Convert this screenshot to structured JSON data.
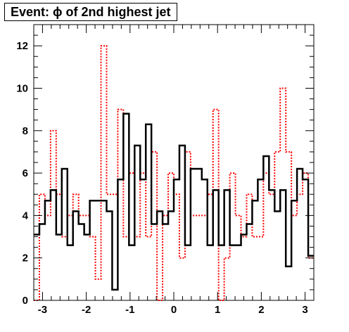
{
  "chart_data": {
    "type": "histogram",
    "title": "Event: ϕ of 2nd highest jet",
    "xlabel": "",
    "ylabel": "",
    "xlim": [
      -3.2,
      3.2
    ],
    "ylim": [
      0,
      13
    ],
    "x_ticks": [
      "-3",
      "-2",
      "-1",
      "0",
      "1",
      "2",
      "3"
    ],
    "y_ticks": [
      "0",
      "2",
      "4",
      "6",
      "8",
      "10",
      "12"
    ],
    "bins": 50,
    "grid": false,
    "legend": "none",
    "series": [
      {
        "color": "#000000",
        "style": "solid",
        "values": [
          3.1,
          3.6,
          4.7,
          5.2,
          3.1,
          6.2,
          2.6,
          4.2,
          3.6,
          3.1,
          4.7,
          4.7,
          4.7,
          4.2,
          0.5,
          5.7,
          8.8,
          2.6,
          7.3,
          5.7,
          8.3,
          3.6,
          4.2,
          3.6,
          4.2,
          5.7,
          7.3,
          2.6,
          6.2,
          6.2,
          5.7,
          2.6,
          5.2,
          2.6,
          5.2,
          2.6,
          2.6,
          3.1,
          3.6,
          4.7,
          5.7,
          6.8,
          5.2,
          4.2,
          5.2,
          1.6,
          4.7,
          6.2,
          5.7,
          2.1
        ]
      },
      {
        "color": "#ff0000",
        "style": "dotted",
        "values": [
          0,
          5,
          4,
          8,
          5,
          3,
          4,
          5,
          4,
          4,
          3,
          1,
          12,
          5,
          5,
          9,
          3,
          6,
          3,
          6,
          3,
          7,
          0,
          4,
          6,
          5,
          2,
          7,
          4,
          4,
          4,
          5,
          9,
          0,
          2,
          6,
          4,
          3,
          5,
          3,
          3,
          6,
          5,
          7,
          10,
          7,
          4,
          5,
          6,
          2
        ]
      }
    ]
  }
}
